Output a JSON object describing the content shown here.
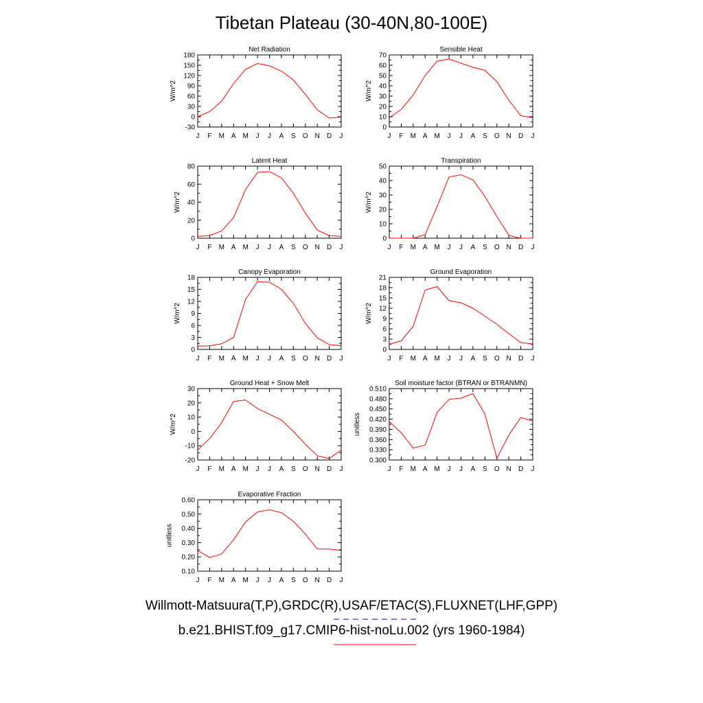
{
  "page": {
    "title": "Tibetan Plateau (30-40N,80-100E)"
  },
  "legend": [
    {
      "label": "Willmott-Matsuura(T,P),GRDC(R),USAF/ETAC(S),FLUXNET(LHF,GPP)",
      "color": "#0000ff",
      "style": "dashed"
    },
    {
      "label": "b.e21.BHIST.f09_g17.CMIP6-hist-noLu.002 (yrs 1960-1984)",
      "color": "#ff0000",
      "style": "solid"
    }
  ],
  "chart_data": [
    {
      "type": "line",
      "title": "Net Radiation",
      "ylabel": "W/m^2",
      "categories": [
        "J",
        "F",
        "M",
        "A",
        "M",
        "J",
        "J",
        "A",
        "S",
        "O",
        "N",
        "D",
        "J"
      ],
      "ylim": [
        -30,
        180
      ],
      "yticks": [
        -30,
        0,
        30,
        60,
        90,
        120,
        150,
        180
      ],
      "yticklabels": [
        "-30",
        "0",
        "30",
        "60",
        "90",
        "120",
        "150",
        "180"
      ],
      "series": [
        {
          "color": "#ff0000",
          "values": [
            0,
            15,
            45,
            97,
            138,
            155,
            148,
            133,
            107,
            65,
            20,
            -4,
            -1
          ]
        }
      ]
    },
    {
      "type": "line",
      "title": "Sensible Heat",
      "ylabel": "W/m^2",
      "categories": [
        "J",
        "F",
        "M",
        "A",
        "M",
        "J",
        "J",
        "A",
        "S",
        "O",
        "N",
        "D",
        "J"
      ],
      "ylim": [
        0,
        70
      ],
      "yticks": [
        0,
        10,
        20,
        30,
        40,
        50,
        60,
        70
      ],
      "yticklabels": [
        "0",
        "10",
        "20",
        "30",
        "40",
        "50",
        "60",
        "70"
      ],
      "series": [
        {
          "color": "#ff0000",
          "values": [
            9,
            17,
            31,
            50,
            64,
            66,
            62,
            58,
            55,
            44,
            26,
            11,
            9
          ]
        }
      ]
    },
    {
      "type": "line",
      "title": "Latent Heat",
      "ylabel": "W/m^2",
      "categories": [
        "J",
        "F",
        "M",
        "A",
        "M",
        "J",
        "J",
        "A",
        "S",
        "O",
        "N",
        "D",
        "J"
      ],
      "ylim": [
        0,
        80
      ],
      "yticks": [
        0,
        20,
        40,
        60,
        80
      ],
      "yticklabels": [
        "0",
        "20",
        "40",
        "60",
        "80"
      ],
      "series": [
        {
          "color": "#ff0000",
          "values": [
            2,
            3,
            8,
            23,
            54,
            73,
            74,
            67,
            50,
            28,
            9,
            3,
            2
          ]
        }
      ]
    },
    {
      "type": "line",
      "title": "Transpiration",
      "ylabel": "W/m^2",
      "categories": [
        "J",
        "F",
        "M",
        "A",
        "M",
        "J",
        "J",
        "A",
        "S",
        "O",
        "N",
        "D",
        "J"
      ],
      "ylim": [
        0,
        50
      ],
      "yticks": [
        0,
        10,
        20,
        30,
        40,
        50
      ],
      "yticklabels": [
        "0",
        "10",
        "20",
        "30",
        "40",
        "50"
      ],
      "series": [
        {
          "color": "#ff0000",
          "values": [
            0,
            0,
            0,
            2.5,
            22,
            42.5,
            44,
            40.5,
            29,
            15,
            2,
            0,
            0
          ]
        }
      ]
    },
    {
      "type": "line",
      "title": "Canopy Evaporation",
      "ylabel": "W/m^2",
      "categories": [
        "J",
        "F",
        "M",
        "A",
        "M",
        "J",
        "J",
        "A",
        "S",
        "O",
        "N",
        "D",
        "J"
      ],
      "ylim": [
        0,
        18
      ],
      "yticks": [
        0,
        3,
        6,
        9,
        12,
        15,
        18
      ],
      "yticklabels": [
        "0",
        "3",
        "6",
        "9",
        "12",
        "15",
        "18"
      ],
      "series": [
        {
          "color": "#ff0000",
          "values": [
            0.8,
            0.9,
            1.4,
            3,
            12.5,
            16.9,
            16.8,
            15,
            11.5,
            6.5,
            2.9,
            1.2,
            0.9
          ]
        }
      ]
    },
    {
      "type": "line",
      "title": "Ground Evaporation",
      "ylabel": "W/m^2",
      "categories": [
        "J",
        "F",
        "M",
        "A",
        "M",
        "J",
        "J",
        "A",
        "S",
        "O",
        "N",
        "D",
        "J"
      ],
      "ylim": [
        0,
        21
      ],
      "yticks": [
        0,
        3,
        6,
        9,
        12,
        15,
        18,
        21
      ],
      "yticklabels": [
        "0",
        "3",
        "6",
        "9",
        "12",
        "15",
        "18",
        "21"
      ],
      "series": [
        {
          "color": "#ff0000",
          "values": [
            1.5,
            2.5,
            6.7,
            17.3,
            18.3,
            14.2,
            13.6,
            12,
            9.7,
            7.3,
            4.6,
            2,
            1.6
          ]
        }
      ]
    },
    {
      "type": "line",
      "title": "Ground Heat + Snow Melt",
      "ylabel": "W/m^2",
      "categories": [
        "J",
        "F",
        "M",
        "A",
        "M",
        "J",
        "J",
        "A",
        "S",
        "O",
        "N",
        "D",
        "J"
      ],
      "ylim": [
        -20,
        30
      ],
      "yticks": [
        -20,
        -10,
        0,
        10,
        20,
        30
      ],
      "yticklabels": [
        "-20",
        "-10",
        "0",
        "10",
        "20",
        "30"
      ],
      "series": [
        {
          "color": "#ff0000",
          "values": [
            -13,
            -5,
            6,
            21,
            22,
            16,
            12,
            8,
            0,
            -9,
            -17,
            -19,
            -13
          ]
        }
      ]
    },
    {
      "type": "line",
      "title": "Soil moisture factor (BTRAN or BTRANMN)",
      "ylabel": "unitless",
      "categories": [
        "J",
        "F",
        "M",
        "A",
        "M",
        "J",
        "J",
        "A",
        "S",
        "O",
        "N",
        "D",
        "J"
      ],
      "ylim": [
        0.3,
        0.51
      ],
      "yticks": [
        0.3,
        0.33,
        0.36,
        0.39,
        0.42,
        0.45,
        0.48,
        0.51
      ],
      "yticklabels": [
        "0.300",
        "0.330",
        "0.360",
        "0.390",
        "0.420",
        "0.450",
        "0.480",
        "0.510"
      ],
      "series": [
        {
          "color": "#ff0000",
          "values": [
            0.413,
            0.38,
            0.335,
            0.344,
            0.44,
            0.478,
            0.482,
            0.495,
            0.435,
            0.305,
            0.373,
            0.425,
            0.414
          ]
        }
      ]
    },
    {
      "type": "line",
      "title": "Evaporative Fraction",
      "ylabel": "unitless",
      "categories": [
        "J",
        "F",
        "M",
        "A",
        "M",
        "J",
        "J",
        "A",
        "S",
        "O",
        "N",
        "D",
        "J"
      ],
      "ylim": [
        0.1,
        0.6
      ],
      "yticks": [
        0.1,
        0.2,
        0.3,
        0.4,
        0.5,
        0.6
      ],
      "yticklabels": [
        "0.10",
        "0.20",
        "0.30",
        "0.40",
        "0.50",
        "0.60"
      ],
      "series": [
        {
          "color": "#ff0000",
          "values": [
            0.245,
            0.195,
            0.22,
            0.32,
            0.445,
            0.515,
            0.53,
            0.51,
            0.45,
            0.36,
            0.255,
            0.255,
            0.245
          ]
        }
      ]
    }
  ]
}
